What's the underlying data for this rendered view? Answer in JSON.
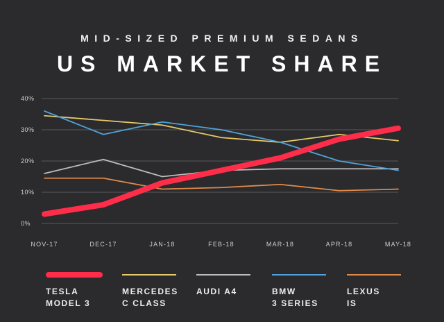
{
  "chart_data": {
    "type": "line",
    "title": "US MARKET SHARE",
    "subtitle": "MID-SIZED PREMIUM SEDANS",
    "categories": [
      "NOV-17",
      "DEC-17",
      "JAN-18",
      "FEB-18",
      "MAR-18",
      "APR-18",
      "MAY-18"
    ],
    "yticks": [
      "0%",
      "10%",
      "20%",
      "30%",
      "40%"
    ],
    "ylim": [
      0,
      40
    ],
    "grid": true,
    "series": [
      {
        "name": "Mercedes C Class",
        "label1": "MERCEDES",
        "label2": "C CLASS",
        "color": "#e6c96a",
        "values": [
          34.5,
          33,
          31.5,
          27.5,
          26,
          28.5,
          26.5
        ]
      },
      {
        "name": "Audi A4",
        "label1": "AUDI A4",
        "label2": "",
        "color": "#bdbdbd",
        "values": [
          16,
          20.5,
          15,
          17,
          17.5,
          17.5,
          17.5
        ]
      },
      {
        "name": "BMW 3 Series",
        "label1": "BMW",
        "label2": "3 SERIES",
        "color": "#4fa3d9",
        "values": [
          36,
          28.5,
          32.5,
          30,
          26,
          20,
          17
        ]
      },
      {
        "name": "Lexus IS",
        "label1": "LEXUS",
        "label2": "IS",
        "color": "#e08a4a",
        "values": [
          14.5,
          14.5,
          11,
          11.5,
          12.5,
          10.5,
          11
        ]
      },
      {
        "name": "Tesla Model 3",
        "label1": "TESLA",
        "label2": "MODEL 3",
        "color": "#ff2d4a",
        "values": [
          3,
          6,
          13,
          17,
          21,
          27,
          30.5
        ]
      }
    ],
    "legend_order": [
      "Tesla Model 3",
      "Mercedes C Class",
      "Audi A4",
      "BMW 3 Series",
      "Lexus IS"
    ]
  }
}
